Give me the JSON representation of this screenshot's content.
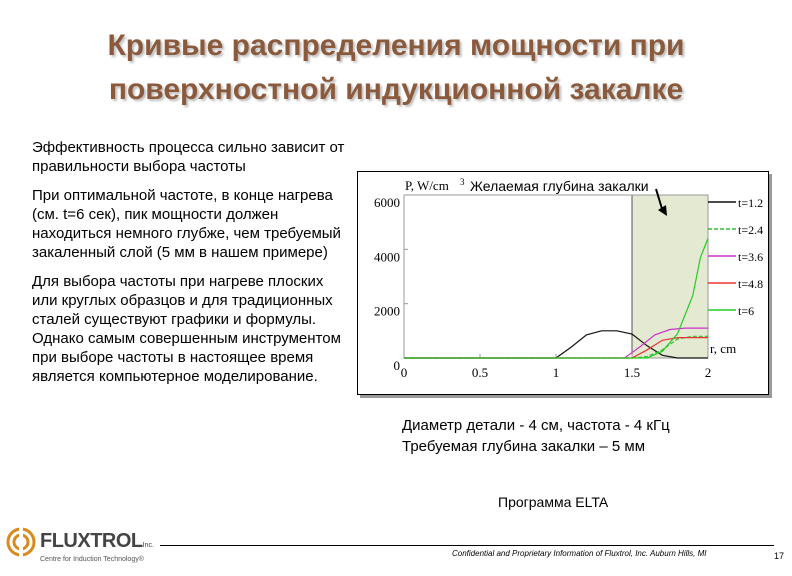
{
  "slide": {
    "title_line1": "Кривые распределения мощности при",
    "title_line2": "поверхностной индукционной закалке",
    "paragraphs": [
      "Эффективность процесса сильно зависит от правильности выбора частоты",
      "При оптимальной частоте, в конце нагрева (см. t=6 сек), пик мощности должен находиться немного глубже, чем требуемый закаленный слой (5 мм в нашем примере)",
      "Для выбора частоты при нагреве плоских или круглых образцов и для традиционных сталей существуют графики и формулы. Однако самым совершенным инструментом при выборе частоты в настоящее время является компьютерное моделирование."
    ],
    "caption_line1": "Диаметр детали - 4 см, частота - 4 кГц",
    "caption_line2": "Требуемая глубина закалки – 5 мм",
    "program_label": "Программа ELTA",
    "footer_text": "Confidential and Proprietary Information of Fluxtrol, Inc. Auburn Hills, MI",
    "page_number": "17",
    "logo_word": "FLUXTROL",
    "logo_inc": "Inc.",
    "logo_tagline": "Centre for Induction Technology®",
    "colors": {
      "title": "#8b5a3c",
      "region": "#e4ead2"
    }
  },
  "chart_data": {
    "type": "line",
    "ylabel": "P, W/cm",
    "ylabel_sup": "3",
    "xlabel": "r, cm",
    "annotation": "Желаемая глубина закалки",
    "xlim": [
      0,
      2
    ],
    "ylim": [
      0,
      6000
    ],
    "x_ticks": [
      "0",
      "0.5",
      "1",
      "1.5",
      "2"
    ],
    "y_ticks": [
      "0",
      "2000",
      "4000",
      "6000"
    ],
    "highlight_region": [
      1.5,
      2.0
    ],
    "series": [
      {
        "name": "t=1.2",
        "color": "#111111",
        "dash": "",
        "points": [
          [
            0,
            0
          ],
          [
            1,
            0
          ],
          [
            1.1,
            400
          ],
          [
            1.2,
            850
          ],
          [
            1.3,
            1000
          ],
          [
            1.4,
            1000
          ],
          [
            1.5,
            880
          ],
          [
            1.6,
            450
          ],
          [
            1.7,
            100
          ],
          [
            1.8,
            0
          ],
          [
            2,
            0
          ]
        ]
      },
      {
        "name": "t=2.4",
        "color": "#33bb33",
        "dash": "4,2",
        "points": [
          [
            0,
            0
          ],
          [
            1.5,
            0
          ],
          [
            1.6,
            50
          ],
          [
            1.7,
            300
          ],
          [
            1.8,
            700
          ],
          [
            1.9,
            800
          ],
          [
            2,
            800
          ]
        ]
      },
      {
        "name": "t=3.6",
        "color": "#cc33cc",
        "dash": "",
        "points": [
          [
            0,
            0
          ],
          [
            1.45,
            0
          ],
          [
            1.55,
            400
          ],
          [
            1.65,
            850
          ],
          [
            1.75,
            1050
          ],
          [
            1.85,
            1100
          ],
          [
            2,
            1100
          ]
        ]
      },
      {
        "name": "t=4.8",
        "color": "#ee3333",
        "dash": "",
        "points": [
          [
            0,
            0
          ],
          [
            1.5,
            0
          ],
          [
            1.6,
            300
          ],
          [
            1.7,
            650
          ],
          [
            1.8,
            750
          ],
          [
            1.9,
            750
          ],
          [
            2,
            750
          ]
        ]
      },
      {
        "name": "t=6",
        "color": "#22cc22",
        "dash": "",
        "points": [
          [
            0,
            0
          ],
          [
            1.6,
            0
          ],
          [
            1.7,
            250
          ],
          [
            1.8,
            900
          ],
          [
            1.9,
            2300
          ],
          [
            1.95,
            3700
          ],
          [
            2,
            4400
          ]
        ]
      }
    ]
  }
}
